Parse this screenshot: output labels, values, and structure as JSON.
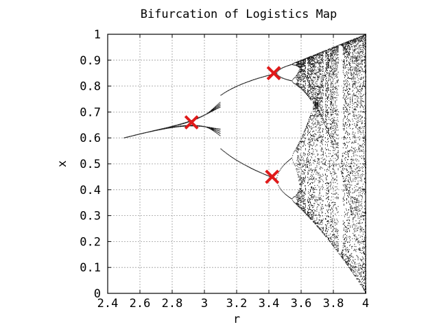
{
  "chart_data": {
    "type": "scatter",
    "title": "Bifurcation of Logistics Map",
    "xlabel": "r",
    "ylabel": "x",
    "xlim": [
      2.4,
      4.0
    ],
    "ylim": [
      0,
      1
    ],
    "x_ticks": [
      "2.4",
      "2.6",
      "2.8",
      "3",
      "3.2",
      "3.4",
      "3.6",
      "3.8",
      "4"
    ],
    "y_ticks": [
      "0",
      "0.1",
      "0.2",
      "0.3",
      "0.4",
      "0.5",
      "0.6",
      "0.7",
      "0.8",
      "0.9",
      "1"
    ],
    "grid": true,
    "series": [
      {
        "map": "x_next = r * x * (1 - x)",
        "r_range": [
          2.5,
          4.0
        ],
        "color": "#000000",
        "marker": "dot"
      }
    ],
    "annotations": [
      {
        "type": "x-marker",
        "color": "#e01a1a",
        "x": 2.92,
        "y": 0.66
      },
      {
        "type": "x-marker",
        "color": "#e01a1a",
        "x": 3.43,
        "y": 0.85
      },
      {
        "type": "x-marker",
        "color": "#e01a1a",
        "x": 3.42,
        "y": 0.45
      }
    ]
  }
}
